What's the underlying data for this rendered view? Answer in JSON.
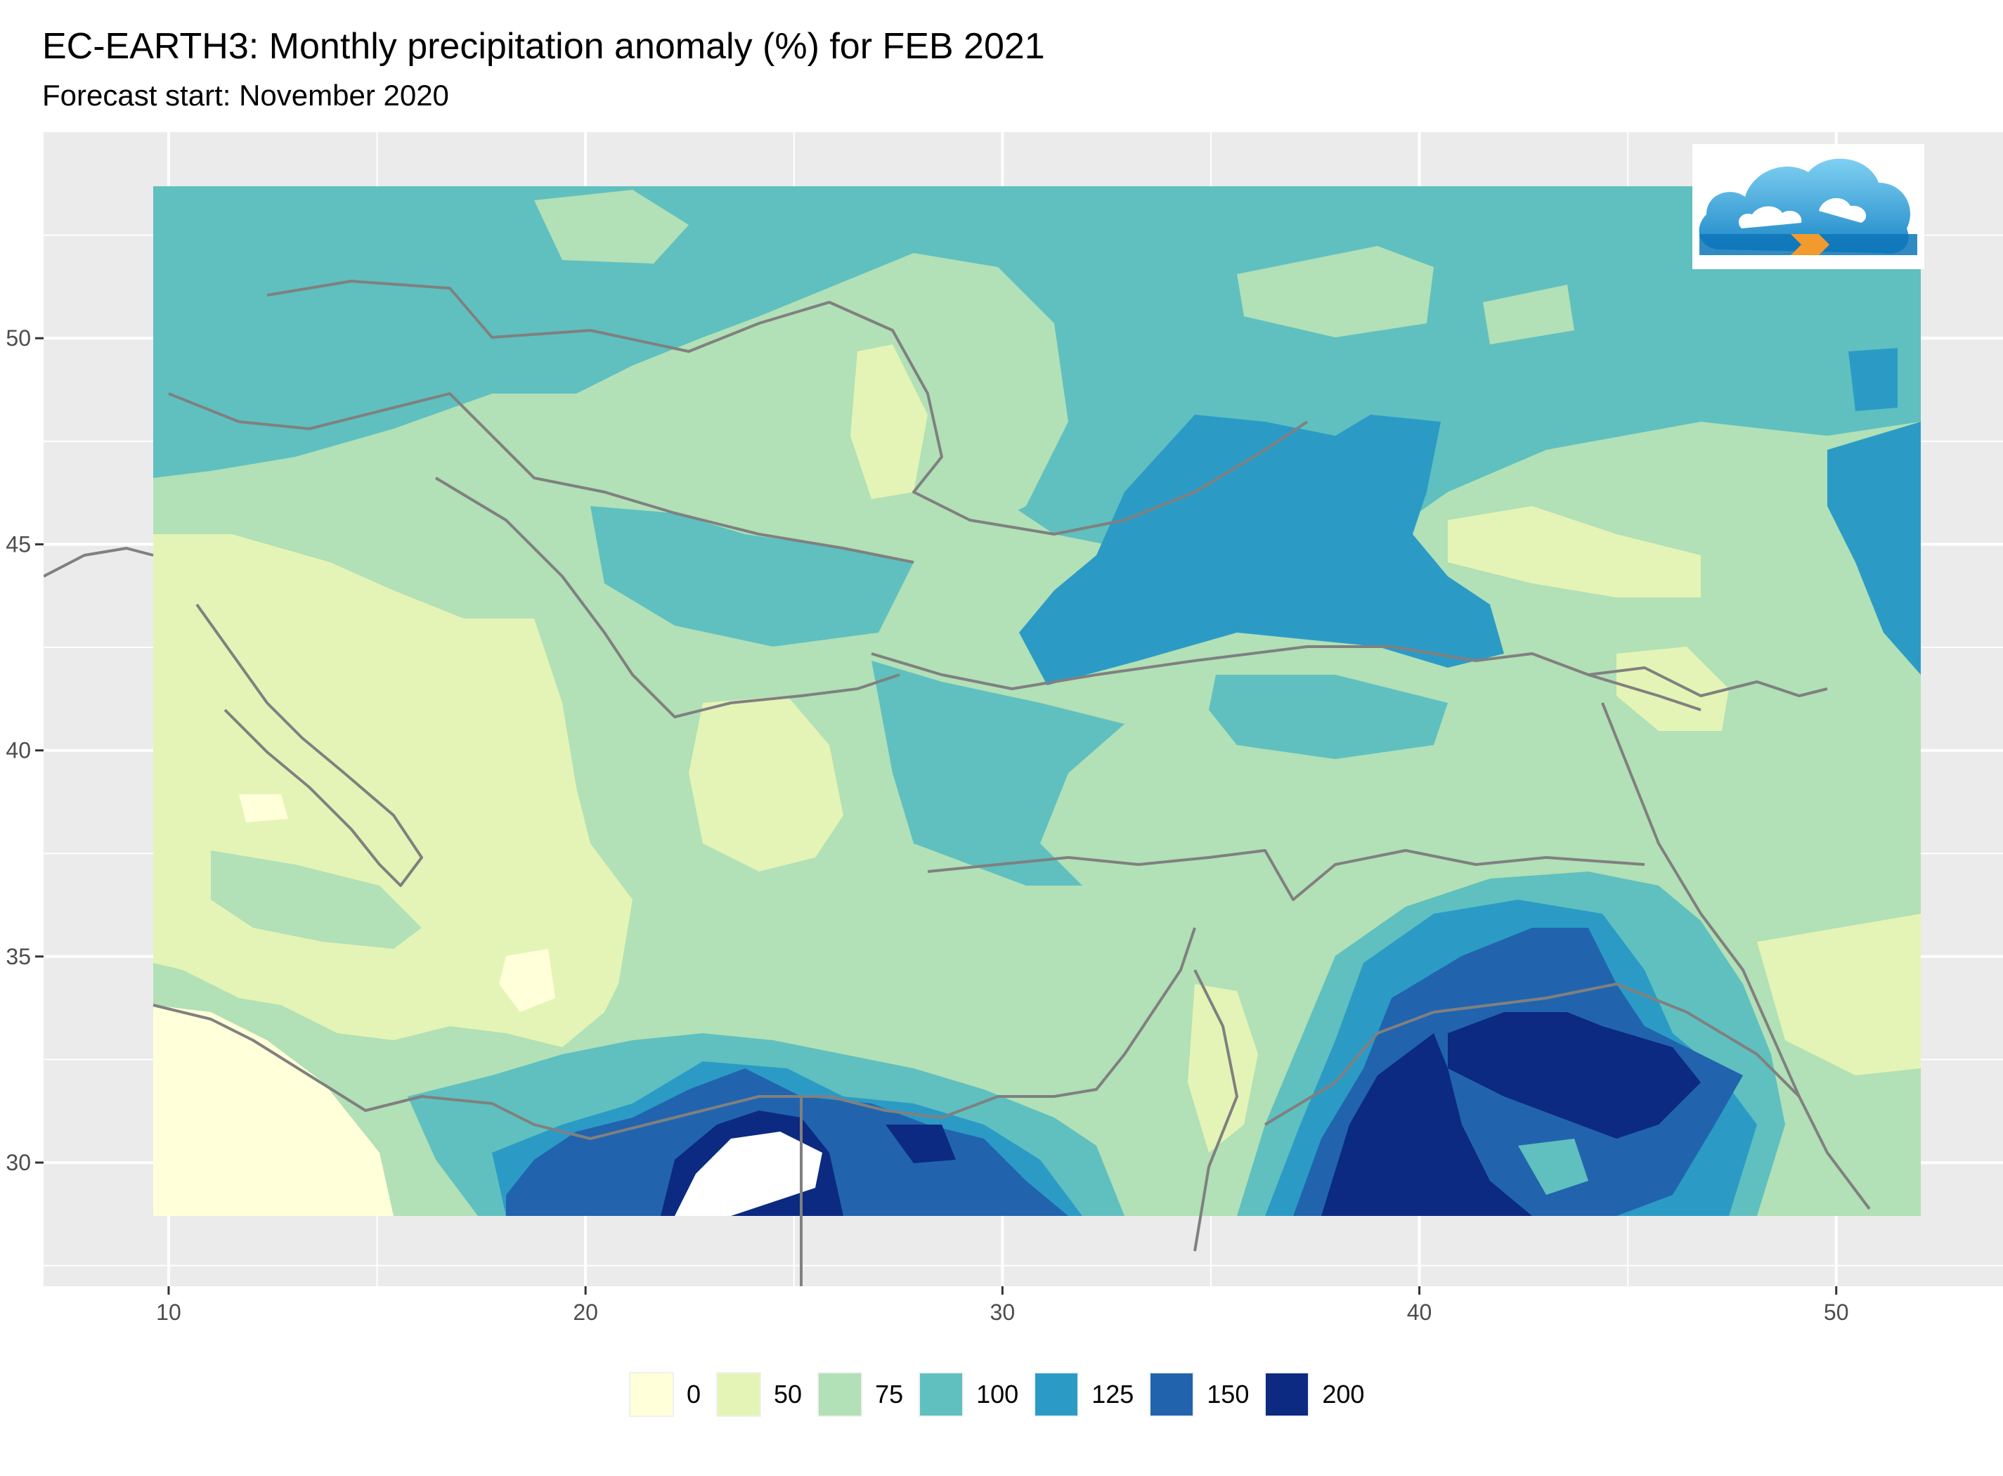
{
  "title": "EC-EARTH3: Monthly precipitation anomaly (%) for FEB 2021",
  "subtitle": "Forecast start: November 2020",
  "map": {
    "x_ticks": [
      "10",
      "20",
      "30",
      "40",
      "50"
    ],
    "y_ticks": [
      "50",
      "45",
      "40",
      "35",
      "30"
    ],
    "x_range": [
      7,
      54
    ],
    "y_range": [
      27,
      55
    ],
    "grid": true,
    "background": "#ebebeb",
    "border_color": "#808080"
  },
  "legend": {
    "items": [
      {
        "label": "0",
        "color": "#ffffd9"
      },
      {
        "label": "50",
        "color": "#e4f4b6"
      },
      {
        "label": "75",
        "color": "#b2e0b7"
      },
      {
        "label": "100",
        "color": "#5fc0bf"
      },
      {
        "label": "125",
        "color": "#2b9bc6"
      },
      {
        "label": "150",
        "color": "#2164ad"
      },
      {
        "label": "200",
        "color": "#0c2a82"
      }
    ]
  },
  "logo": {
    "icon": "cloud-logo-icon"
  }
}
